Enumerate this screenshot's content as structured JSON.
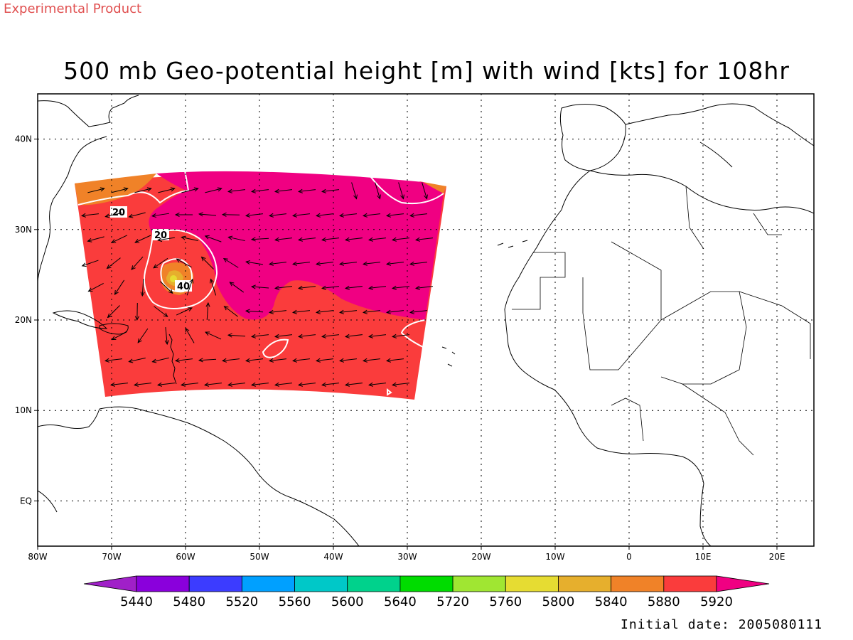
{
  "header": {
    "product_tag": "Experimental Product",
    "title": "500 mb Geo-potential height [m] with wind [kts] for 108hr",
    "initial_date": "Initial date: 2005080111"
  },
  "map": {
    "lon_range": [
      -80,
      25
    ],
    "lat_range": [
      -5,
      45
    ],
    "lat_ticks": [
      {
        "lat": 40,
        "label": "40N"
      },
      {
        "lat": 30,
        "label": "30N"
      },
      {
        "lat": 20,
        "label": "20N"
      },
      {
        "lat": 10,
        "label": "10N"
      },
      {
        "lat": 0,
        "label": "EQ"
      }
    ],
    "lon_ticks": [
      {
        "lon": -80,
        "label": "80W"
      },
      {
        "lon": -70,
        "label": "70W"
      },
      {
        "lon": -60,
        "label": "60W"
      },
      {
        "lon": -50,
        "label": "50W"
      },
      {
        "lon": -40,
        "label": "40W"
      },
      {
        "lon": -30,
        "label": "30W"
      },
      {
        "lon": -20,
        "label": "20W"
      },
      {
        "lon": -10,
        "label": "10W"
      },
      {
        "lon": 0,
        "label": "0"
      },
      {
        "lon": 10,
        "label": "10E"
      },
      {
        "lon": 20,
        "label": "20E"
      }
    ],
    "wind_contour_labels": [
      {
        "text": "20"
      },
      {
        "text": "20"
      },
      {
        "text": "40"
      }
    ]
  },
  "colorbar": {
    "colors": [
      "#a020c8",
      "#8a00dc",
      "#3c3cff",
      "#00a0ff",
      "#00c8c8",
      "#00d28c",
      "#00dc00",
      "#a0e632",
      "#e6dc32",
      "#e6af2d",
      "#f08228",
      "#fa3c3c",
      "#f00082"
    ],
    "labels": [
      "5440",
      "5480",
      "5520",
      "5560",
      "5600",
      "5640",
      "5720",
      "5760",
      "5800",
      "5840",
      "5880",
      "5920"
    ]
  },
  "colors": {
    "band_5880": "#fa3c3c",
    "band_5840": "#f08228",
    "band_5920": "#f00082",
    "band_5800": "#e6af2d",
    "product_tag": "#e05050"
  }
}
